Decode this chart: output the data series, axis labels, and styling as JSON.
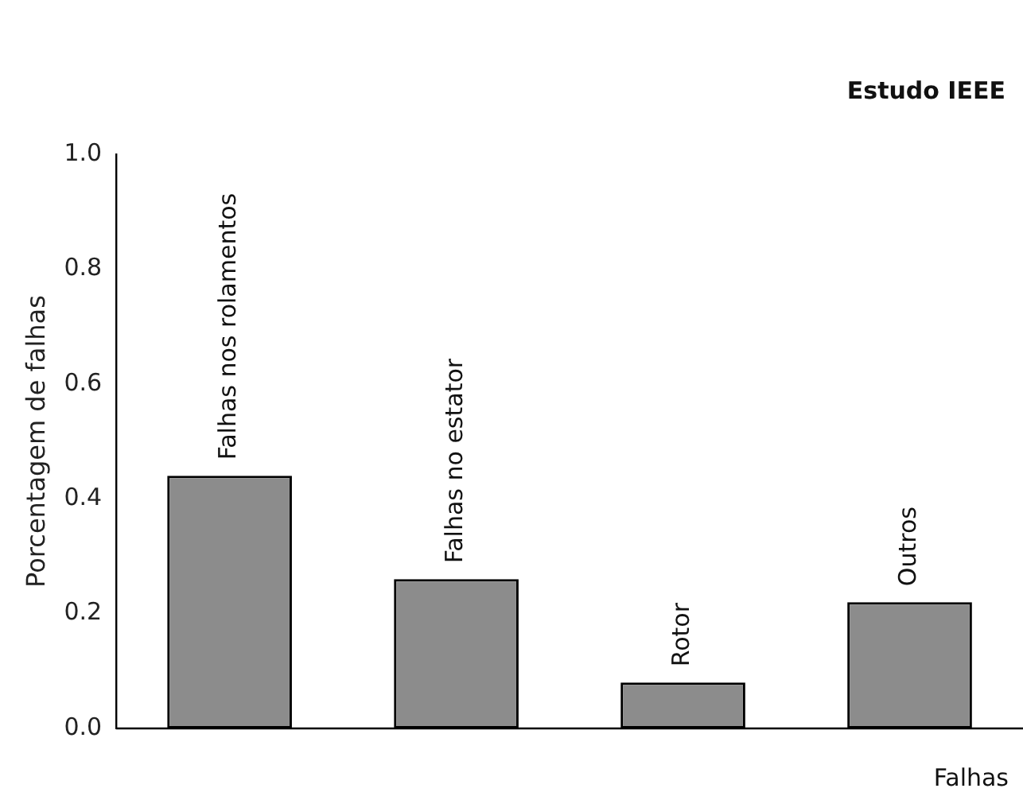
{
  "chart_data": {
    "type": "bar",
    "title": "Estudo IEEE",
    "xlabel": "Falhas",
    "ylabel": "Porcentagem de falhas",
    "categories": [
      "Falhas nos rolamentos",
      "Falhas no estator",
      "Rotor",
      "Outros"
    ],
    "values": [
      0.44,
      0.26,
      0.08,
      0.22
    ],
    "color": "#8c8c8c",
    "ylim": [
      0,
      1.0
    ],
    "yticks": [
      {
        "value": 0,
        "label": "0.0"
      },
      {
        "value": 0.2,
        "label": "0.2"
      },
      {
        "value": 0.4,
        "label": "0.4"
      },
      {
        "value": 0.6,
        "label": "0.6"
      },
      {
        "value": 0.8,
        "label": "0.8"
      },
      {
        "value": 1.0,
        "label": "1.0"
      }
    ],
    "grid": false,
    "legend": false
  }
}
